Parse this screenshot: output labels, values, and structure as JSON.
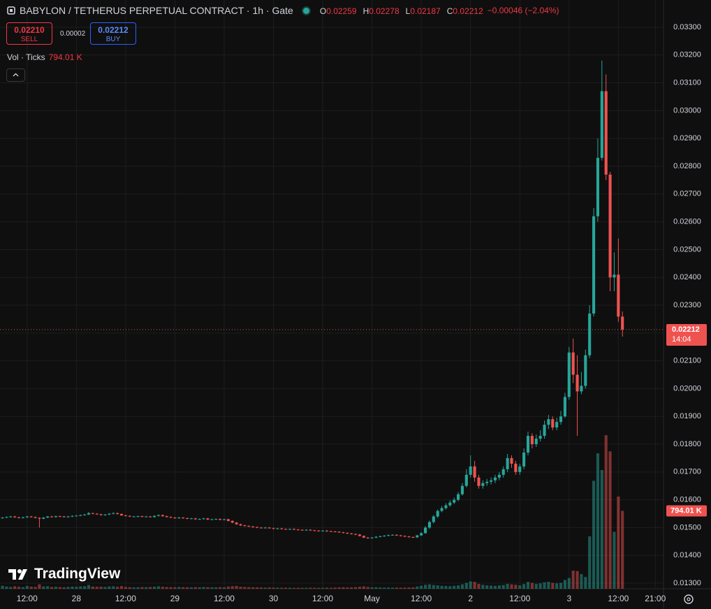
{
  "header": {
    "symbol": "BABYLON / TETHERUS PERPETUAL CONTRACT · 1h · Gate",
    "ohlc": [
      {
        "label": "O",
        "value": "0.02259"
      },
      {
        "label": "H",
        "value": "0.02278"
      },
      {
        "label": "L",
        "value": "0.02187"
      },
      {
        "label": "C",
        "value": "0.02212"
      }
    ],
    "change": "−0.00046 (−2.04%)"
  },
  "trade": {
    "sell_price": "0.02210",
    "sell": "SELL",
    "spread": "0.00002",
    "buy_price": "0.02212",
    "buy": "BUY"
  },
  "volume_legend": {
    "label": "Vol · Ticks",
    "value": "794.01 K"
  },
  "logo": "TradingView",
  "chart_data": {
    "type": "candlestick",
    "up_color": "#26a69a",
    "down_color": "#ef5350",
    "grid": true,
    "last_price_label": "0.02212",
    "countdown": "14:04",
    "volume_label": "794.01 K",
    "xlim": [
      -0.6,
      161
    ],
    "ylim": [
      0.0128,
      0.03398
    ],
    "vlim": [
      0,
      6000000
    ],
    "xticks": [
      {
        "value": 6,
        "label": "12:00"
      },
      {
        "value": 18,
        "label": "28"
      },
      {
        "value": 30,
        "label": "12:00"
      },
      {
        "value": 42,
        "label": "29"
      },
      {
        "value": 54,
        "label": "12:00"
      },
      {
        "value": 66,
        "label": "30"
      },
      {
        "value": 78,
        "label": "12:00"
      },
      {
        "value": 90,
        "label": "May"
      },
      {
        "value": 102,
        "label": "12:00"
      },
      {
        "value": 114,
        "label": "2"
      },
      {
        "value": 126,
        "label": "12:00"
      },
      {
        "value": 138,
        "label": "3"
      },
      {
        "value": 150,
        "label": "12:00"
      },
      {
        "value": 159,
        "label": "21:00"
      }
    ],
    "yticks": [
      {
        "value": 0.013,
        "label": "0.01300"
      },
      {
        "value": 0.014,
        "label": "0.01400"
      },
      {
        "value": 0.015,
        "label": "0.01500"
      },
      {
        "value": 0.016,
        "label": "0.01600"
      },
      {
        "value": 0.017,
        "label": "0.01700"
      },
      {
        "value": 0.018,
        "label": "0.01800"
      },
      {
        "value": 0.019,
        "label": "0.01900"
      },
      {
        "value": 0.02,
        "label": "0.02000"
      },
      {
        "value": 0.021,
        "label": "0.02100"
      },
      {
        "value": 0.022,
        "label": "0.02200"
      },
      {
        "value": 0.023,
        "label": "0.02300"
      },
      {
        "value": 0.024,
        "label": "0.02400"
      },
      {
        "value": 0.025,
        "label": "0.02500"
      },
      {
        "value": 0.026,
        "label": "0.02600"
      },
      {
        "value": 0.027,
        "label": "0.02700"
      },
      {
        "value": 0.028,
        "label": "0.02800"
      },
      {
        "value": 0.029,
        "label": "0.02900"
      },
      {
        "value": 0.03,
        "label": "0.03000"
      },
      {
        "value": 0.031,
        "label": "0.03100"
      },
      {
        "value": 0.032,
        "label": "0.03200"
      },
      {
        "value": 0.033,
        "label": "0.03300"
      }
    ],
    "open": [
      0.01534,
      0.01536,
      0.01538,
      0.0154,
      0.01537,
      0.01535,
      0.01537,
      0.0154,
      0.01538,
      0.01535,
      0.01532,
      0.01536,
      0.0154,
      0.01538,
      0.01541,
      0.0154,
      0.01538,
      0.0154,
      0.01542,
      0.01543,
      0.01545,
      0.01547,
      0.01552,
      0.0155,
      0.01548,
      0.01545,
      0.01547,
      0.0155,
      0.01552,
      0.01549,
      0.01544,
      0.01542,
      0.0154,
      0.0154,
      0.01541,
      0.01539,
      0.0154,
      0.01538,
      0.01542,
      0.01545,
      0.01541,
      0.01538,
      0.01536,
      0.01534,
      0.01536,
      0.01534,
      0.01532,
      0.01533,
      0.0153,
      0.01531,
      0.01533,
      0.01529,
      0.0153,
      0.01531,
      0.01528,
      0.0153,
      0.01524,
      0.01518,
      0.01512,
      0.01508,
      0.01506,
      0.01504,
      0.01502,
      0.015,
      0.01499,
      0.015,
      0.01498,
      0.01496,
      0.01497,
      0.01495,
      0.01494,
      0.01495,
      0.01493,
      0.01492,
      0.01491,
      0.01492,
      0.0149,
      0.01489,
      0.01488,
      0.01489,
      0.01487,
      0.01486,
      0.01485,
      0.01483,
      0.01481,
      0.01479,
      0.01477,
      0.01475,
      0.0147,
      0.01464,
      0.01462,
      0.01464,
      0.01467,
      0.01469,
      0.01471,
      0.01473,
      0.01474,
      0.01472,
      0.0147,
      0.01468,
      0.01466,
      0.01465,
      0.01472,
      0.0148,
      0.015,
      0.0152,
      0.0154,
      0.0156,
      0.0157,
      0.0158,
      0.0159,
      0.016,
      0.0162,
      0.0165,
      0.0169,
      0.0172,
      0.0168,
      0.0165,
      0.0166,
      0.01665,
      0.0167,
      0.0168,
      0.0169,
      0.0171,
      0.0175,
      0.0173,
      0.017,
      0.0172,
      0.0177,
      0.0183,
      0.018,
      0.0182,
      0.0183,
      0.0187,
      0.0189,
      0.0186,
      0.0188,
      0.019,
      0.0197,
      0.0213,
      0.0205,
      0.0199,
      0.0201,
      0.0212,
      0.0227,
      0.0262,
      0.0283,
      0.0307,
      0.0277,
      0.024,
      0.0241,
      0.02259
    ],
    "high": [
      0.01538,
      0.0154,
      0.01542,
      0.01542,
      0.01539,
      0.01539,
      0.01542,
      0.01542,
      0.0154,
      0.01537,
      0.01538,
      0.01542,
      0.01542,
      0.01543,
      0.01543,
      0.01542,
      0.01542,
      0.01544,
      0.01545,
      0.01547,
      0.01549,
      0.01556,
      0.01554,
      0.01552,
      0.0155,
      0.01549,
      0.01552,
      0.01555,
      0.01554,
      0.01551,
      0.01546,
      0.01544,
      0.01542,
      0.01543,
      0.01543,
      0.01542,
      0.01542,
      0.01544,
      0.01547,
      0.01547,
      0.01543,
      0.0154,
      0.01538,
      0.01538,
      0.01538,
      0.01536,
      0.01535,
      0.01535,
      0.01533,
      0.01535,
      0.01535,
      0.01532,
      0.01533,
      0.01533,
      0.01532,
      0.01532,
      0.01526,
      0.0152,
      0.01514,
      0.0151,
      0.01508,
      0.01506,
      0.01504,
      0.01502,
      0.01502,
      0.01502,
      0.015,
      0.01499,
      0.01499,
      0.01497,
      0.01497,
      0.01497,
      0.01495,
      0.01494,
      0.01494,
      0.01494,
      0.01492,
      0.01491,
      0.01491,
      0.01491,
      0.01489,
      0.01488,
      0.01487,
      0.01485,
      0.01483,
      0.01481,
      0.01479,
      0.01477,
      0.01472,
      0.01466,
      0.01466,
      0.01469,
      0.01471,
      0.01473,
      0.01475,
      0.01476,
      0.01476,
      0.01474,
      0.01472,
      0.0147,
      0.01468,
      0.01474,
      0.01484,
      0.01505,
      0.01525,
      0.01545,
      0.01565,
      0.01578,
      0.01588,
      0.01598,
      0.01608,
      0.01628,
      0.0166,
      0.0171,
      0.0176,
      0.0174,
      0.0169,
      0.0167,
      0.01675,
      0.0168,
      0.0169,
      0.017,
      0.0172,
      0.01765,
      0.0176,
      0.0174,
      0.0173,
      0.01785,
      0.01845,
      0.0184,
      0.01835,
      0.0185,
      0.01885,
      0.01905,
      0.019,
      0.01895,
      0.0192,
      0.01985,
      0.0215,
      0.0218,
      0.0212,
      0.0206,
      0.0214,
      0.023,
      0.0265,
      0.029,
      0.0318,
      0.0313,
      0.0278,
      0.0249,
      0.0254,
      0.02278
    ],
    "low": [
      0.01532,
      0.01534,
      0.01536,
      0.01535,
      0.01533,
      0.01533,
      0.01535,
      0.01536,
      0.01533,
      0.015,
      0.0153,
      0.01534,
      0.01536,
      0.01536,
      0.01538,
      0.01536,
      0.01536,
      0.01538,
      0.0154,
      0.01541,
      0.01543,
      0.01545,
      0.01548,
      0.01546,
      0.01543,
      0.01543,
      0.01545,
      0.01548,
      0.01547,
      0.01542,
      0.0154,
      0.01538,
      0.01538,
      0.01538,
      0.01537,
      0.01537,
      0.01536,
      0.01536,
      0.0154,
      0.01539,
      0.01536,
      0.01534,
      0.01532,
      0.01532,
      0.01532,
      0.0153,
      0.0153,
      0.01528,
      0.01528,
      0.01529,
      0.01527,
      0.01527,
      0.01528,
      0.01526,
      0.01526,
      0.01522,
      0.01516,
      0.0151,
      0.01506,
      0.01504,
      0.01502,
      0.015,
      0.01498,
      0.01497,
      0.01497,
      0.01496,
      0.01494,
      0.01494,
      0.01493,
      0.01492,
      0.01492,
      0.01491,
      0.0149,
      0.01489,
      0.01489,
      0.01488,
      0.01487,
      0.01486,
      0.01486,
      0.01485,
      0.01484,
      0.01483,
      0.01481,
      0.01479,
      0.01477,
      0.01475,
      0.01473,
      0.01468,
      0.01462,
      0.0146,
      0.0146,
      0.01462,
      0.01465,
      0.01467,
      0.01469,
      0.01471,
      0.0147,
      0.01468,
      0.01466,
      0.01464,
      0.01463,
      0.01463,
      0.0147,
      0.01478,
      0.01495,
      0.01515,
      0.01535,
      0.01555,
      0.01565,
      0.01575,
      0.01585,
      0.01595,
      0.01615,
      0.01645,
      0.0168,
      0.01665,
      0.0164,
      0.0164,
      0.0165,
      0.01655,
      0.0166,
      0.0167,
      0.0168,
      0.017,
      0.01715,
      0.0169,
      0.0169,
      0.0171,
      0.0176,
      0.01785,
      0.0179,
      0.0181,
      0.0182,
      0.01855,
      0.0185,
      0.0185,
      0.0187,
      0.01895,
      0.0196,
      0.0202,
      0.0183,
      0.0198,
      0.02,
      0.0211,
      0.0226,
      0.026,
      0.0282,
      0.0275,
      0.0235,
      0.0235,
      0.0224,
      0.02187
    ],
    "close": [
      0.01536,
      0.01538,
      0.0154,
      0.01537,
      0.01535,
      0.01537,
      0.0154,
      0.01538,
      0.01535,
      0.01532,
      0.01536,
      0.0154,
      0.01538,
      0.01541,
      0.0154,
      0.01538,
      0.0154,
      0.01542,
      0.01543,
      0.01545,
      0.01547,
      0.01552,
      0.0155,
      0.01548,
      0.01545,
      0.01547,
      0.0155,
      0.01552,
      0.01549,
      0.01544,
      0.01542,
      0.0154,
      0.0154,
      0.01541,
      0.01539,
      0.0154,
      0.01538,
      0.01542,
      0.01545,
      0.01541,
      0.01538,
      0.01536,
      0.01534,
      0.01536,
      0.01534,
      0.01532,
      0.01533,
      0.0153,
      0.01531,
      0.01533,
      0.01529,
      0.0153,
      0.01531,
      0.01528,
      0.0153,
      0.01524,
      0.01518,
      0.01512,
      0.01508,
      0.01506,
      0.01504,
      0.01502,
      0.015,
      0.01499,
      0.015,
      0.01498,
      0.01496,
      0.01497,
      0.01495,
      0.01494,
      0.01495,
      0.01493,
      0.01492,
      0.01491,
      0.01492,
      0.0149,
      0.01489,
      0.01488,
      0.01489,
      0.01487,
      0.01486,
      0.01485,
      0.01483,
      0.01481,
      0.01479,
      0.01477,
      0.01475,
      0.0147,
      0.01464,
      0.01462,
      0.01464,
      0.01467,
      0.01469,
      0.01471,
      0.01473,
      0.01474,
      0.01472,
      0.0147,
      0.01468,
      0.01466,
      0.01465,
      0.01472,
      0.0148,
      0.015,
      0.0152,
      0.0154,
      0.0156,
      0.0157,
      0.0158,
      0.0159,
      0.016,
      0.0162,
      0.0165,
      0.0169,
      0.0172,
      0.0168,
      0.0165,
      0.0166,
      0.01665,
      0.0167,
      0.0168,
      0.0169,
      0.0171,
      0.0175,
      0.0173,
      0.017,
      0.0172,
      0.0177,
      0.0183,
      0.018,
      0.0182,
      0.0183,
      0.0187,
      0.0189,
      0.0186,
      0.0188,
      0.019,
      0.0197,
      0.0213,
      0.0205,
      0.0199,
      0.0201,
      0.0212,
      0.0227,
      0.0262,
      0.0283,
      0.0307,
      0.0277,
      0.024,
      0.0241,
      0.02259,
      0.02212
    ],
    "volume": [
      30000,
      22000,
      18000,
      25000,
      20000,
      16000,
      28000,
      21000,
      19000,
      45000,
      24000,
      26000,
      18000,
      20000,
      17000,
      15000,
      19000,
      22000,
      20000,
      24000,
      26000,
      38000,
      22000,
      20000,
      21000,
      18000,
      23000,
      25000,
      20000,
      27000,
      19000,
      16000,
      14000,
      15000,
      17000,
      16000,
      18000,
      21000,
      24000,
      20000,
      17000,
      16000,
      15000,
      18000,
      16000,
      15000,
      14000,
      16000,
      15000,
      17000,
      16000,
      15000,
      14000,
      16000,
      15000,
      22000,
      26000,
      28000,
      20000,
      18000,
      16000,
      15000,
      14000,
      13000,
      12000,
      14000,
      12000,
      11000,
      10000,
      11000,
      10000,
      9000,
      10000,
      9000,
      10000,
      11000,
      10000,
      9000,
      10000,
      11000,
      10000,
      12000,
      14000,
      15000,
      13000,
      14000,
      16000,
      20000,
      24000,
      18000,
      14000,
      15000,
      13000,
      12000,
      12000,
      11000,
      12000,
      11000,
      12000,
      13000,
      14000,
      22000,
      30000,
      40000,
      45000,
      38000,
      35000,
      30000,
      28000,
      26000,
      30000,
      34000,
      45000,
      60000,
      75000,
      70000,
      50000,
      40000,
      35000,
      32000,
      30000,
      34000,
      38000,
      50000,
      45000,
      40000,
      35000,
      48000,
      70000,
      60000,
      50000,
      55000,
      65000,
      70000,
      60000,
      55000,
      60000,
      90000,
      110000,
      185000,
      180000,
      150000,
      120000,
      534000,
      1100000,
      1380000,
      1210000,
      1565000,
      1400000,
      580000,
      940000,
      794010
    ]
  }
}
